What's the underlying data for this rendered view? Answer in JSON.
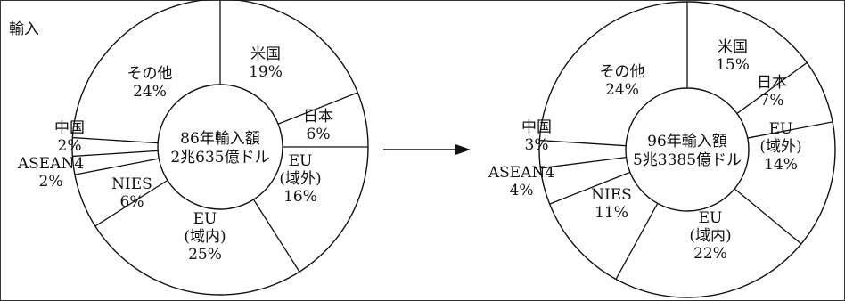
{
  "title": "輸入",
  "chart_data": [
    {
      "type": "pie",
      "center_lines": [
        "86年輸入額",
        "2兆635億ドル"
      ],
      "slices": [
        {
          "name": [
            "米国"
          ],
          "value": 19
        },
        {
          "name": [
            "日本"
          ],
          "value": 6
        },
        {
          "name": [
            "EU",
            "(域外)"
          ],
          "value": 16
        },
        {
          "name": [
            "EU",
            "(域内)"
          ],
          "value": 25
        },
        {
          "name": [
            "NIES"
          ],
          "value": 6
        },
        {
          "name": [
            "ASEAN4"
          ],
          "value": 2
        },
        {
          "name": [
            "中国"
          ],
          "value": 2
        },
        {
          "name": [
            "その他"
          ],
          "value": 24
        }
      ]
    },
    {
      "type": "pie",
      "center_lines": [
        "96年輸入額",
        "5兆3385億ドル"
      ],
      "slices": [
        {
          "name": [
            "米国"
          ],
          "value": 15
        },
        {
          "name": [
            "日本"
          ],
          "value": 7
        },
        {
          "name": [
            "EU",
            "(域外)"
          ],
          "value": 14
        },
        {
          "name": [
            "EU",
            "(域内)"
          ],
          "value": 22
        },
        {
          "name": [
            "NIES"
          ],
          "value": 11
        },
        {
          "name": [
            "ASEAN4"
          ],
          "value": 4
        },
        {
          "name": [
            "中国"
          ],
          "value": 3
        },
        {
          "name": [
            "その他"
          ],
          "value": 24
        }
      ]
    }
  ]
}
